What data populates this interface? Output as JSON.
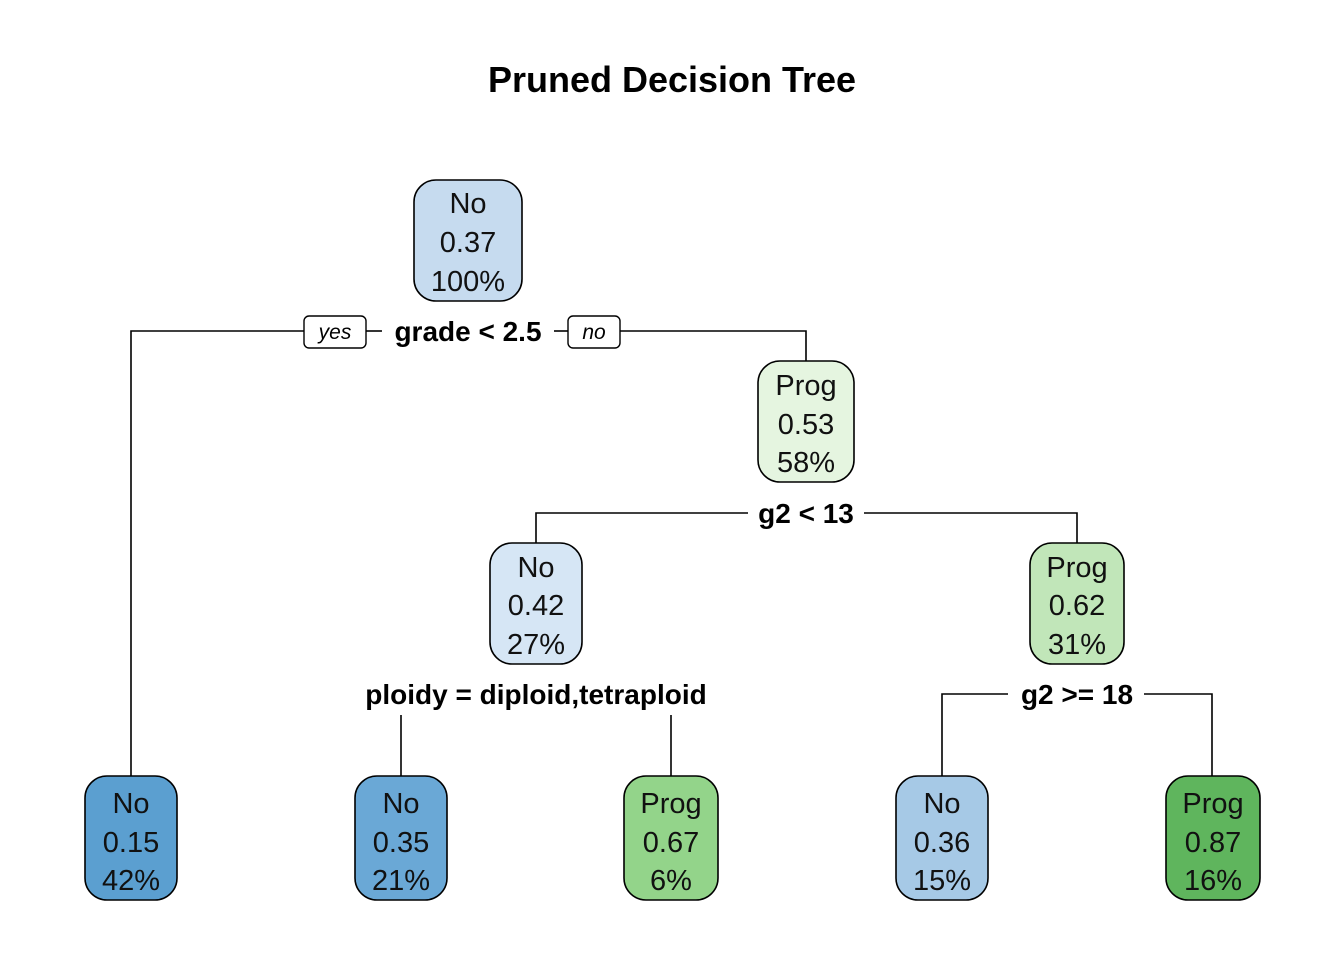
{
  "title": "Pruned Decision Tree",
  "branch_tags": {
    "yes": "yes",
    "no": "no"
  },
  "nodes": {
    "root": {
      "class": "No",
      "prob": "0.37",
      "pct": "100%",
      "fill": "#c6dbef"
    },
    "n3": {
      "class": "Prog",
      "prob": "0.53",
      "pct": "58%",
      "fill": "#e5f5e0"
    },
    "n6": {
      "class": "No",
      "prob": "0.42",
      "pct": "27%",
      "fill": "#d6e6f5"
    },
    "n7": {
      "class": "Prog",
      "prob": "0.62",
      "pct": "31%",
      "fill": "#c1e6b9"
    },
    "leaf2": {
      "class": "No",
      "prob": "0.15",
      "pct": "42%",
      "fill": "#5b9fd0"
    },
    "leaf12": {
      "class": "No",
      "prob": "0.35",
      "pct": "21%",
      "fill": "#6aa8d6"
    },
    "leaf13": {
      "class": "Prog",
      "prob": "0.67",
      "pct": "6%",
      "fill": "#93d48a"
    },
    "leaf14": {
      "class": "No",
      "prob": "0.36",
      "pct": "15%",
      "fill": "#a6c9e6"
    },
    "leaf15": {
      "class": "Prog",
      "prob": "0.87",
      "pct": "16%",
      "fill": "#5fb55d"
    }
  },
  "splits": {
    "root": "grade < 2.5",
    "n3": "g2 < 13",
    "n6": "ploidy = diploid,tetraploid",
    "n7": "g2 >= 18"
  }
}
